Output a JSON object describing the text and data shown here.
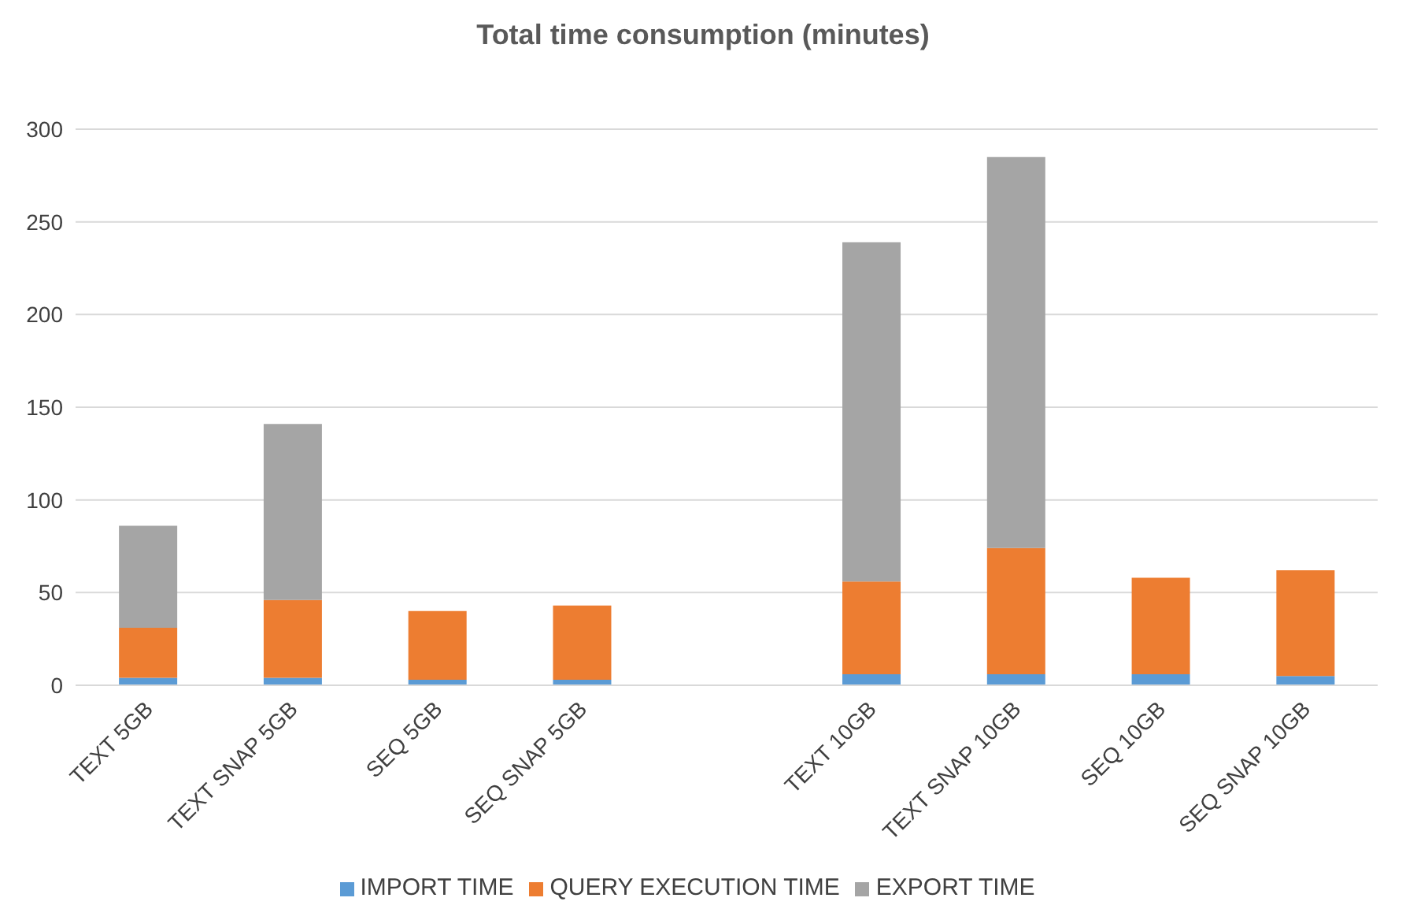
{
  "chart_data": {
    "type": "bar",
    "title": "Total time consumption (minutes)",
    "stacked": true,
    "categories": [
      "TEXT 5GB",
      "TEXT SNAP 5GB",
      "SEQ 5GB",
      "SEQ SNAP 5GB",
      null,
      "TEXT 10GB",
      "TEXT SNAP 10GB",
      "SEQ 10GB",
      "SEQ SNAP 10GB"
    ],
    "series": [
      {
        "name": "IMPORT TIME",
        "color": "#5b9bd5",
        "values": [
          4,
          4,
          3,
          3,
          null,
          6,
          6,
          6,
          5
        ]
      },
      {
        "name": "QUERY EXECUTION TIME",
        "color": "#ed7d31",
        "values": [
          27,
          42,
          37,
          40,
          null,
          50,
          68,
          52,
          57
        ]
      },
      {
        "name": "EXPORT TIME",
        "color": "#a5a5a5",
        "values": [
          55,
          95,
          0,
          0,
          null,
          183,
          211,
          0,
          0
        ]
      }
    ],
    "ylim": [
      0,
      300
    ],
    "yticks": [
      0,
      50,
      100,
      150,
      200,
      250,
      300
    ],
    "grid": "y",
    "legend": "bottom"
  }
}
